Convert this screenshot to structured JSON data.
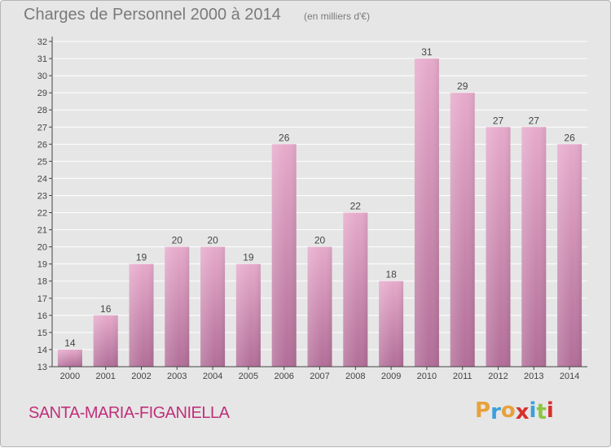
{
  "header": {
    "title": "Charges de Personnel 2000 à 2014",
    "subtitle": "(en milliers d'€)"
  },
  "footer": {
    "commune": "SANTA-MARIA-FIGANIELLA",
    "logo_letters": [
      "P",
      "r",
      "o",
      "x",
      "i",
      "t",
      "i"
    ],
    "logo_colors": [
      "#e8a13a",
      "#3aa0dc",
      "#e8a13a",
      "#d8302c",
      "#3aa0dc",
      "#8cc63f",
      "#d8302c"
    ]
  },
  "colors": {
    "bar_light": "#e6aacb",
    "bar_dark": "#b26e98",
    "axis": "#444444",
    "grid": "#ffffff"
  },
  "chart_data": {
    "type": "bar",
    "categories": [
      "2000",
      "2001",
      "2002",
      "2003",
      "2004",
      "2005",
      "2006",
      "2007",
      "2008",
      "2009",
      "2010",
      "2011",
      "2012",
      "2013",
      "2014"
    ],
    "values": [
      14,
      16,
      19,
      20,
      20,
      19,
      26,
      20,
      22,
      18,
      31,
      29,
      27,
      27,
      26
    ],
    "ylim": [
      13,
      32
    ],
    "ytick_step": 1,
    "grid": true,
    "data_labels": true,
    "title": "Charges de Personnel 2000 à 2014",
    "xlabel": "",
    "ylabel": ""
  }
}
